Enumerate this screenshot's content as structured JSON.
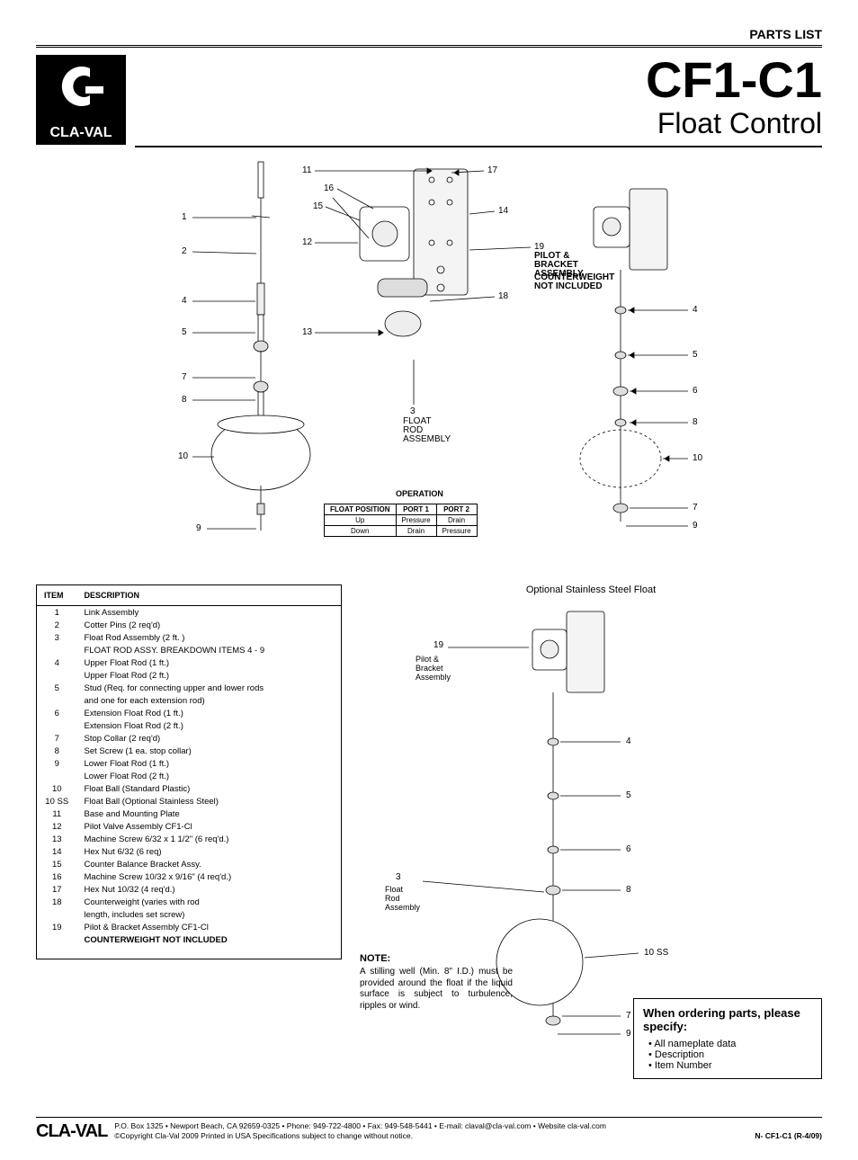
{
  "header": {
    "parts_list": "PARTS LIST"
  },
  "brand": {
    "name": "CLA-VAL"
  },
  "title": {
    "model": "CF1-C1",
    "sub": "Float Control"
  },
  "diagram": {
    "callouts_left": [
      "1",
      "2",
      "4",
      "5",
      "7",
      "8",
      "10",
      "9"
    ],
    "callouts_mid": [
      "11",
      "16",
      "15",
      "12",
      "13",
      "17",
      "14",
      "19",
      "18",
      "3"
    ],
    "callouts_right": [
      "4",
      "5",
      "6",
      "8",
      "10",
      "7",
      "9"
    ],
    "pilot_bracket": "PILOT &\nBRACKET\nASSEMBLY",
    "counterweight_note": "COUNTERWEIGHT\nNOT INCLUDED",
    "float_rod": "FLOAT\nROD\nASSEMBLY",
    "operation_title": "OPERATION",
    "op_headers": [
      "FLOAT POSITION",
      "PORT 1",
      "PORT 2"
    ],
    "op_rows": [
      [
        "Up",
        "Pressure",
        "Drain"
      ],
      [
        "Down",
        "Drain",
        "Pressure"
      ]
    ]
  },
  "parts_table": {
    "headers": [
      "ITEM",
      "DESCRIPTION"
    ],
    "rows": [
      {
        "item": "1",
        "desc": "Link Assembly"
      },
      {
        "item": "2",
        "desc": "Cotter Pins (2 req'd)"
      },
      {
        "item": "3",
        "desc": "Float  Rod Assembly (2 ft. )"
      },
      {
        "item": "",
        "desc": "FLOAT ROD ASSY. BREAKDOWN  ITEMS  4 - 9"
      },
      {
        "item": "4",
        "desc": "Upper Float Rod (1 ft.)"
      },
      {
        "item": "",
        "desc": "Upper Float Rod (2 ft.)"
      },
      {
        "item": "5",
        "desc": "Stud (Req. for connecting upper and lower rods"
      },
      {
        "item": "",
        "desc": "and one for each extension rod)"
      },
      {
        "item": "6",
        "desc": "Extension Float Rod (1 ft.)"
      },
      {
        "item": "",
        "desc": "Extension Float Rod (2 ft.)"
      },
      {
        "item": "7",
        "desc": "Stop Collar (2 req'd)"
      },
      {
        "item": "8",
        "desc": "Set Screw (1 ea. stop collar)"
      },
      {
        "item": "9",
        "desc": "Lower Float Rod (1 ft.)"
      },
      {
        "item": "",
        "desc": "Lower Float Rod (2 ft.)"
      },
      {
        "item": "10",
        "desc": "Float Ball (Standard Plastic)"
      },
      {
        "item": "10 SS",
        "desc": "Float Ball (Optional Stainless Steel)"
      },
      {
        "item": "11",
        "desc": "Base and Mounting Plate"
      },
      {
        "item": "12",
        "desc": "Pilot Valve Assembly CF1-Cl"
      },
      {
        "item": "13",
        "desc": "Machine Screw 6/32 x 1 1/2\" (6 req'd.)"
      },
      {
        "item": "14",
        "desc": "Hex Nut 6/32 (6 req)"
      },
      {
        "item": "15",
        "desc": "Counter Balance Bracket Assy."
      },
      {
        "item": "16",
        "desc": "Machine Screw 10/32 x 9/16\" (4 req'd.)"
      },
      {
        "item": "17",
        "desc": "Hex Nut 10/32 (4 req'd.)"
      },
      {
        "item": "18",
        "desc": "Counterweight (varies with rod"
      },
      {
        "item": "",
        "desc": "length, includes set screw)"
      },
      {
        "item": "19",
        "desc": "Pilot & Bracket Assembly CF1-Cl"
      }
    ],
    "footer_bold": "COUNTERWEIGHT NOT INCLUDED"
  },
  "optional": {
    "title": "Optional Stainless Steel Float",
    "callout_19": "19",
    "pilot_bracket": "Pilot &\nBracket\nAssembly",
    "callout_3": "3",
    "float_rod": "Float\nRod\nAssembly",
    "right_callouts": [
      "4",
      "5",
      "6",
      "8",
      "10 SS",
      "7",
      "9"
    ]
  },
  "note": {
    "heading": "NOTE:",
    "text": "A stilling well (Min. 8\" I.D.) must be provided around the float if the liquid surface is subject to turbulence, ripples or wind."
  },
  "order_box": {
    "heading": "When ordering parts, please specify:",
    "items": [
      "All nameplate data",
      "Description",
      "Item Number"
    ]
  },
  "footer": {
    "brand": "CLA-VAL",
    "line1": "P.O. Box 1325 • Newport Beach, CA 92659-0325 • Phone: 949-722-4800 • Fax: 949-548-5441 • E-mail: claval@cla-val.com • Website cla-val.com",
    "copyright": "©Copyright Cla-Val 2009   Printed in USA   Specifications subject to change without notice.",
    "doc_id": "N- CF1-C1 (R-4/09)"
  },
  "colors": {
    "text": "#000000",
    "bg": "#ffffff",
    "line": "#000000",
    "fill_light": "#f4f4f4"
  }
}
